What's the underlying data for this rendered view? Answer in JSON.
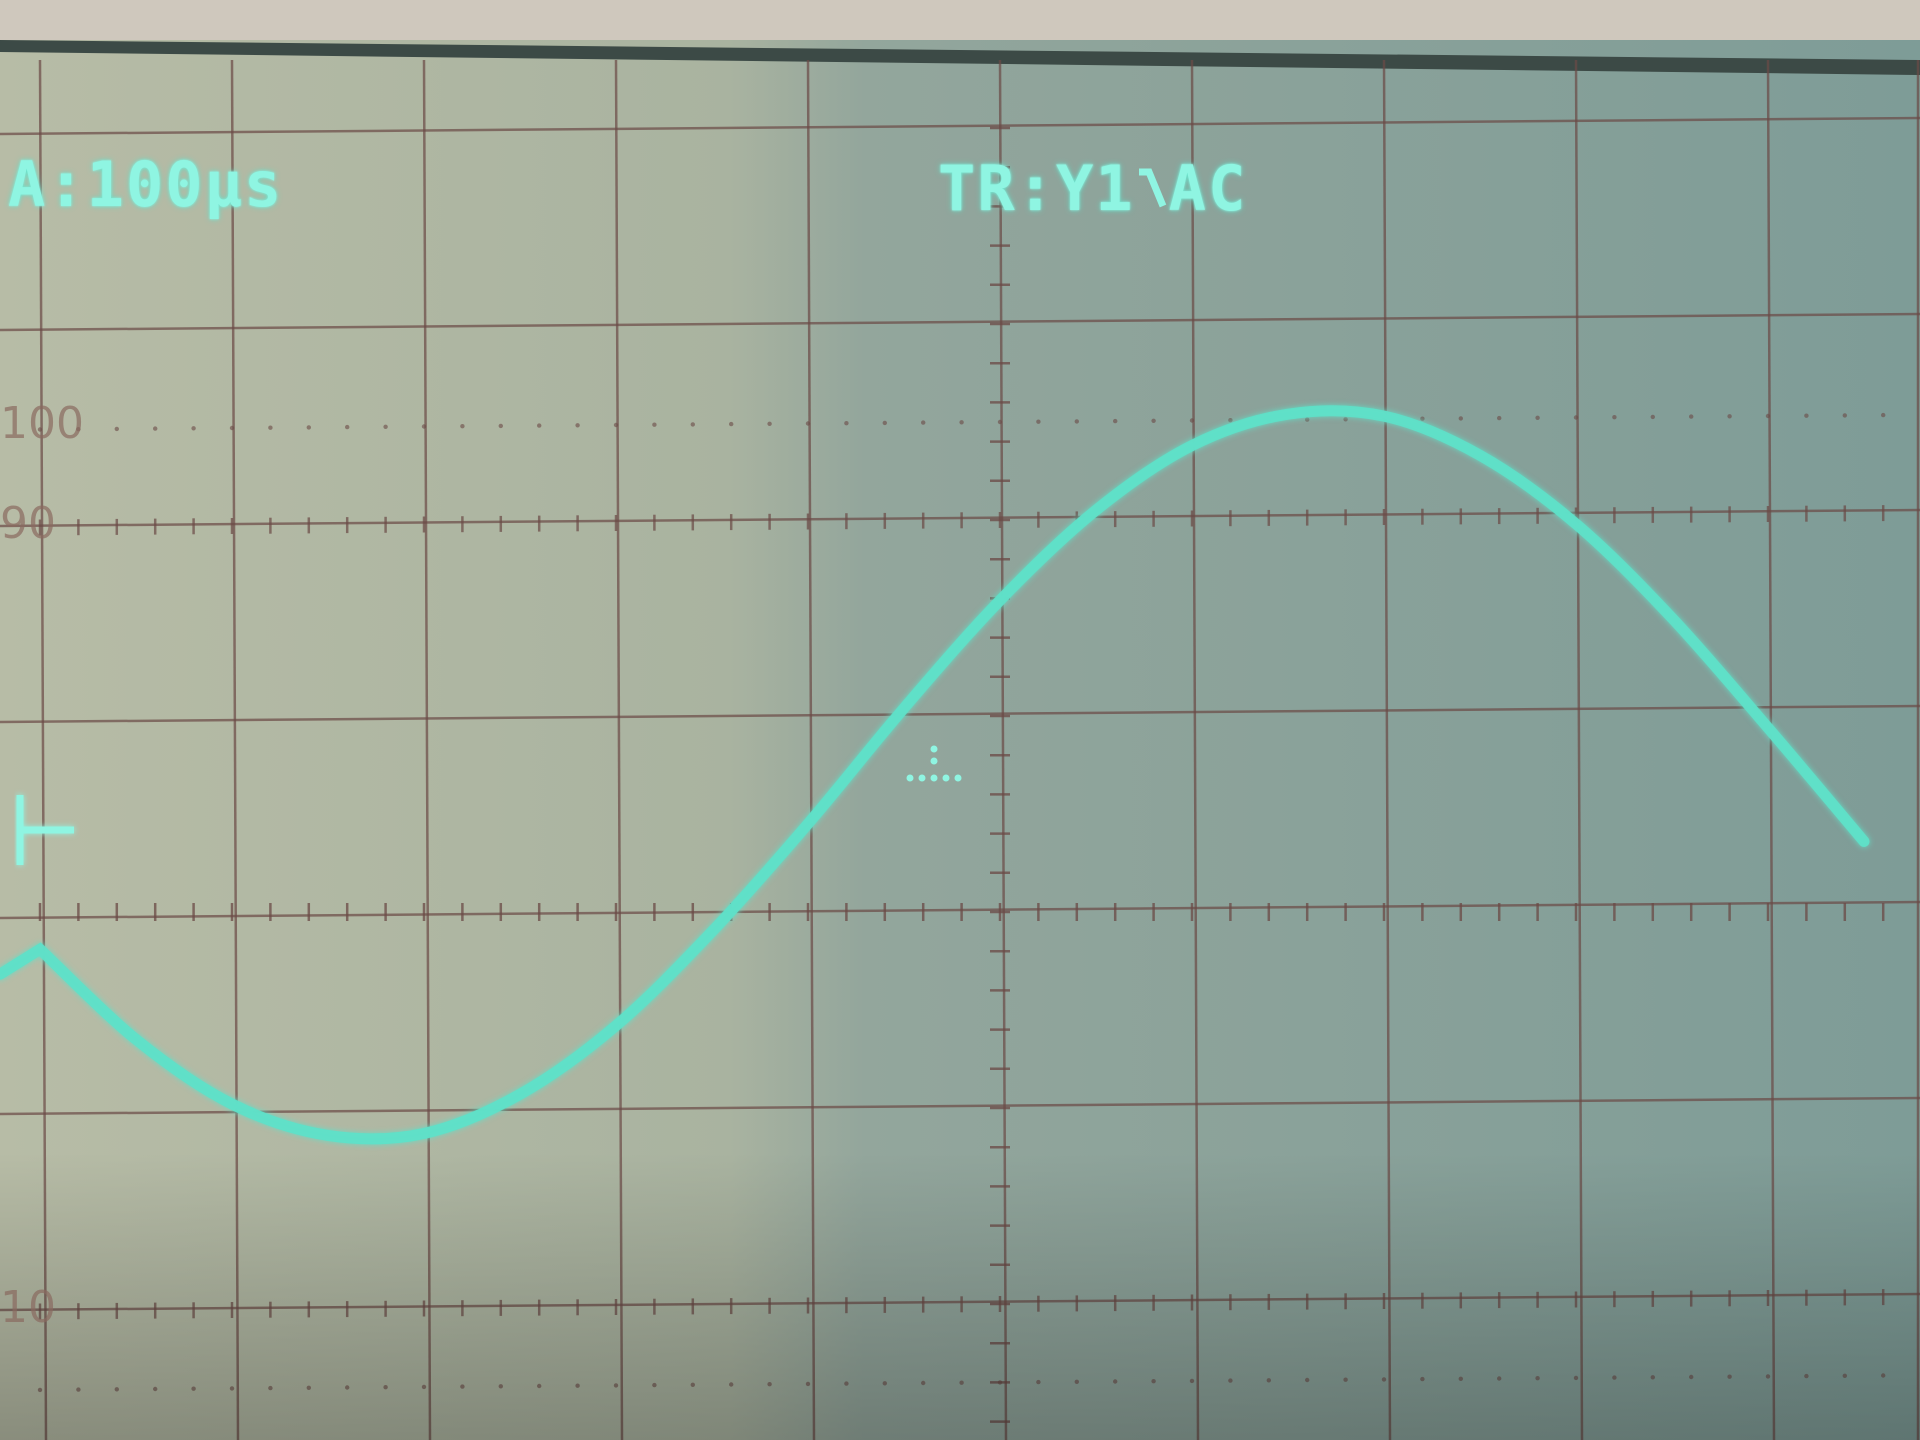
{
  "screen": {
    "timebase_readout": "A:100µs",
    "trigger_readout_prefix": "TR:Y1",
    "trigger_slope_icon": "rising-edge-icon",
    "trigger_coupling": "AC",
    "graticule_labels": {
      "top": "100",
      "upper": "90",
      "lower": "10"
    },
    "colors": {
      "trace": "#5fe0c8",
      "grid": "#6b4a46",
      "screen_left": "#b4b9a2",
      "screen_right": "#7f9d98"
    }
  },
  "chart_data": {
    "type": "line",
    "title": "",
    "xlabel": "",
    "ylabel": "",
    "grid": true,
    "x_units": "div",
    "y_units": "div",
    "xlim": [
      -5,
      5
    ],
    "ylim": [
      -4,
      4
    ],
    "series": [
      {
        "x": [
          -5,
          -4.5,
          -4,
          -3.5,
          -3,
          -2.5,
          -2,
          -1.5,
          -1,
          -0.5,
          0,
          0.5,
          1,
          1.5,
          2,
          2.5,
          3,
          3.5,
          4,
          4.5
        ],
        "y": [
          -0.19,
          -0.65,
          -0.98,
          -1.14,
          -1.13,
          -0.93,
          -0.58,
          -0.1,
          0.45,
          1.04,
          1.59,
          2.05,
          2.38,
          2.54,
          2.53,
          2.33,
          1.98,
          1.5,
          0.94,
          0.36
        ]
      }
    ]
  }
}
